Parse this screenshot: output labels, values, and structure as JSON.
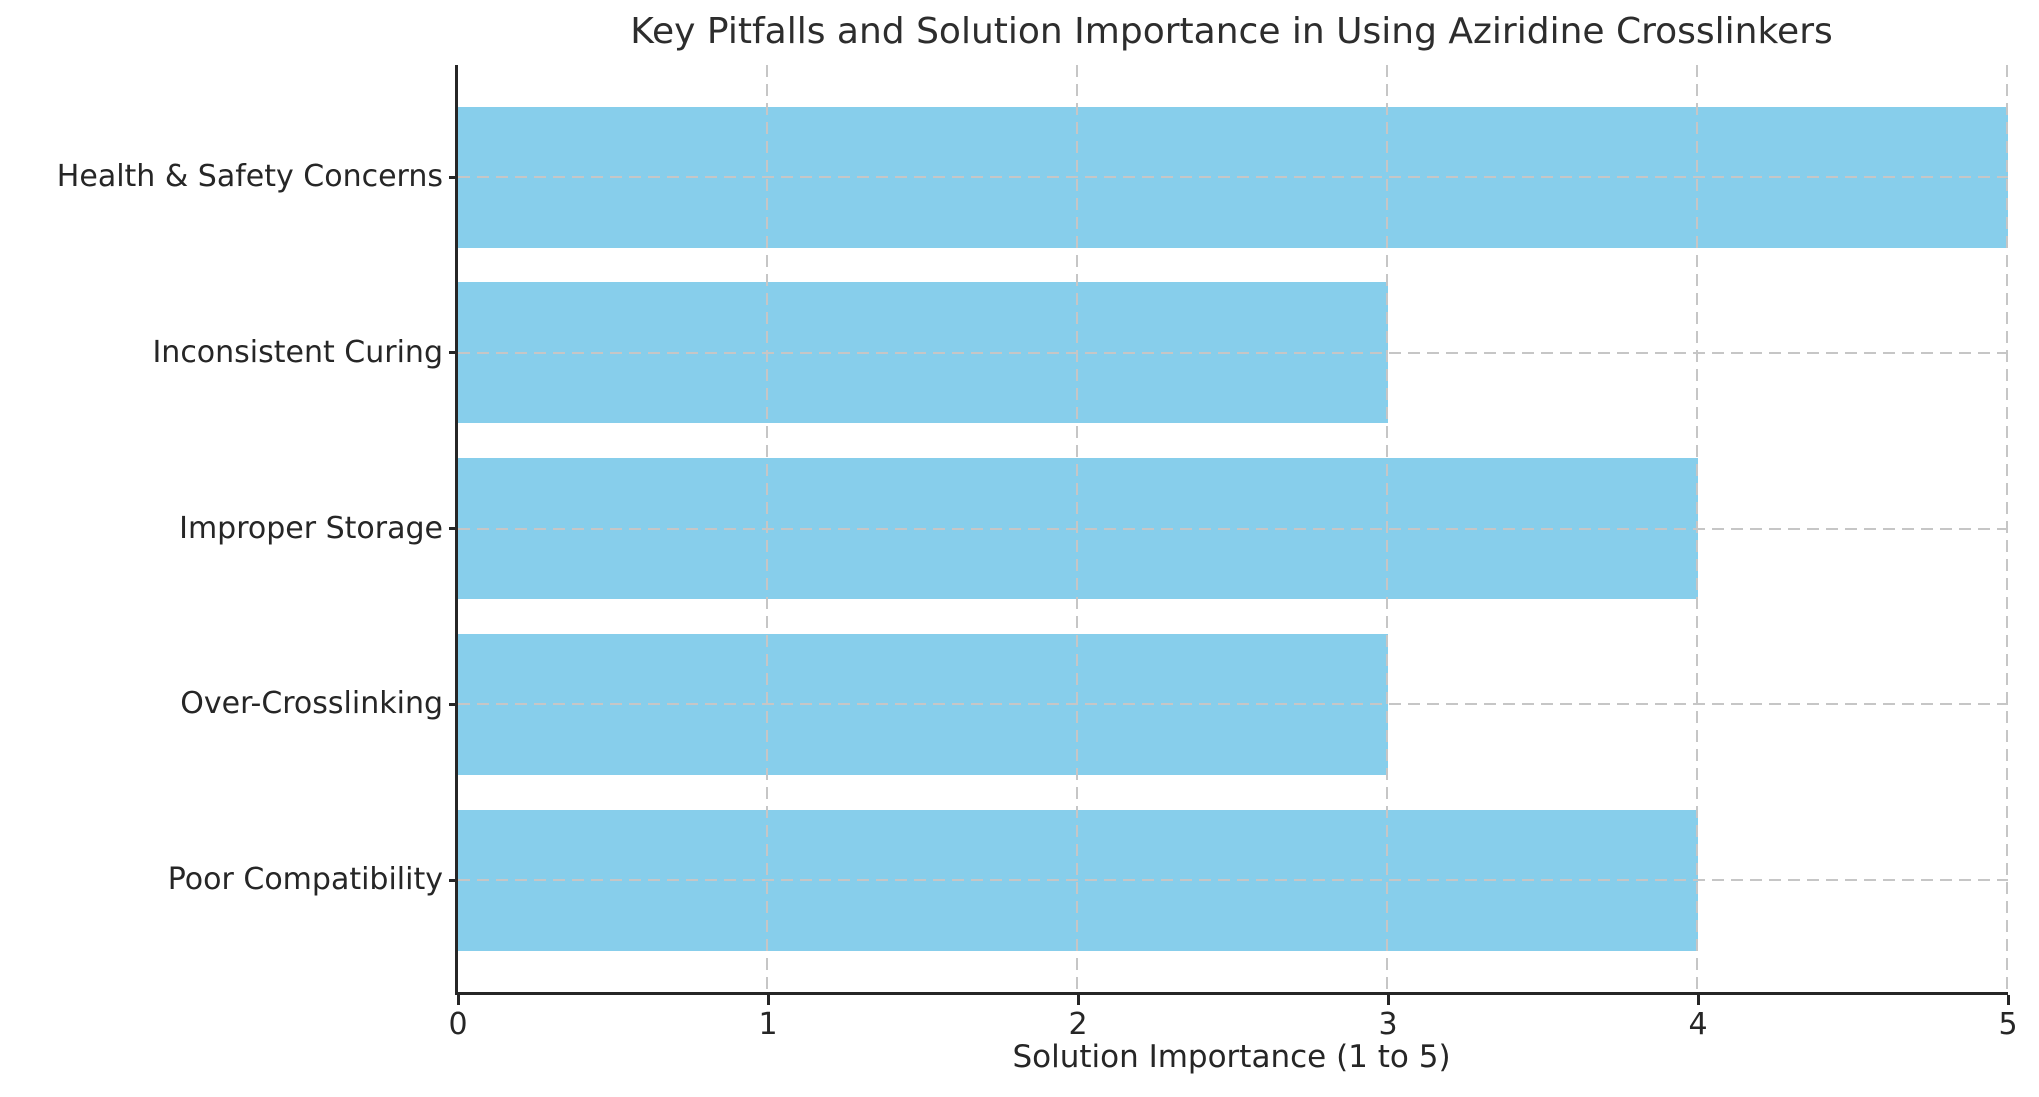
{
  "chart_data": {
    "type": "bar",
    "orientation": "horizontal",
    "title": "Key Pitfalls and Solution Importance in Using Aziridine Crosslinkers",
    "xlabel": "Solution Importance (1 to 5)",
    "ylabel": "",
    "categories": [
      "Health & Safety Concerns",
      "Inconsistent Curing",
      "Improper Storage",
      "Over-Crosslinking",
      "Poor Compatibility"
    ],
    "values": [
      5,
      3,
      4,
      3,
      4
    ],
    "xlim": [
      0,
      5
    ],
    "x_ticks": [
      "0",
      "1",
      "2",
      "3",
      "4",
      "5"
    ],
    "bar_color": "#87CEEB",
    "gridline_color": "#c6c6c6",
    "grid_style": "dashed",
    "axis_color": "#262626",
    "legend": "none"
  }
}
